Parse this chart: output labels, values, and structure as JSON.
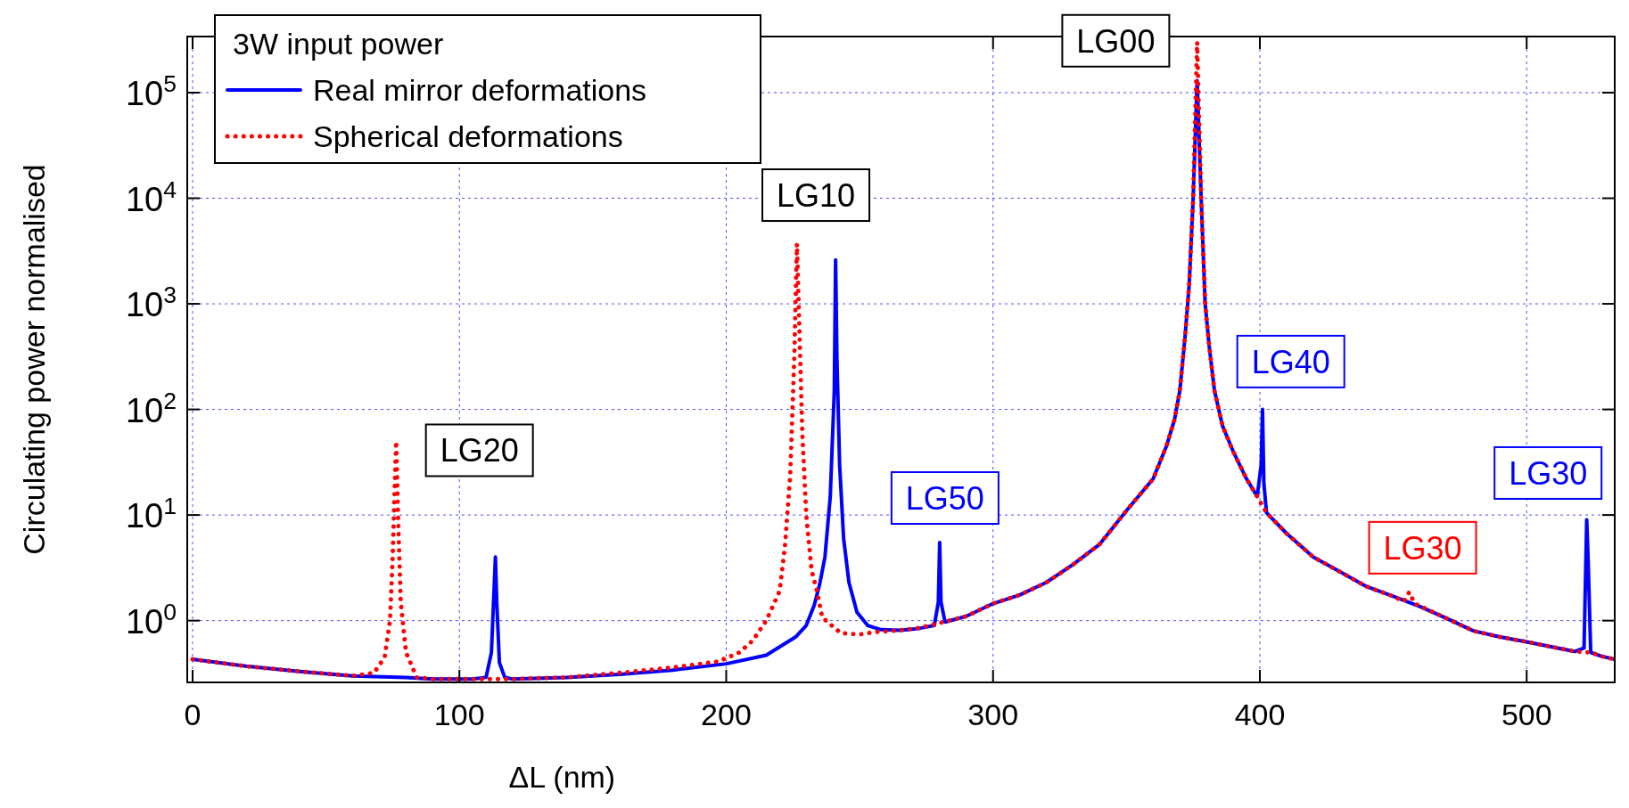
{
  "chart_data": {
    "type": "line",
    "xlabel": "ΔL  (nm)",
    "ylabel": "Circulating power normalised",
    "legend_title": "3W input power",
    "legend": "top left",
    "grid": true,
    "log": "y",
    "xlim": [
      -2,
      533
    ],
    "xticks": [
      0,
      100,
      200,
      300,
      400,
      500
    ],
    "ylim": [
      0.26,
      340000
    ],
    "yticks": [
      {
        "value": 1,
        "label": "10$^{0}$"
      },
      {
        "value": 10,
        "label": "10$^{1}$"
      },
      {
        "value": 100,
        "label": "10$^{2}$"
      },
      {
        "value": 1000,
        "label": "10$^{3}$"
      },
      {
        "value": 10000,
        "label": "10$^{4}$"
      },
      {
        "value": 100000,
        "label": "10$^{5}$"
      }
    ],
    "series": [
      {
        "name": "Real mirror deformations",
        "color": "#0000ff",
        "line_style": "solid",
        "x": [
          0,
          20,
          40,
          60,
          80,
          90,
          105,
          110,
          112,
          113,
          113.5,
          114,
          115,
          117,
          120,
          140,
          160,
          180,
          200,
          215,
          226,
          230,
          233,
          235,
          237,
          239,
          240.5,
          241,
          241.5,
          242.5,
          244,
          246,
          249,
          253,
          258,
          265,
          272,
          278,
          279.5,
          280,
          280.5,
          282,
          290,
          300,
          310,
          320,
          330,
          340,
          350,
          360,
          365,
          368,
          370,
          372,
          373.5,
          375,
          376.5,
          378,
          379.5,
          381,
          383,
          386,
          390,
          395,
          399,
          400.5,
          401,
          401.5,
          402.5,
          410,
          420,
          430,
          440,
          450,
          460,
          470,
          480,
          490,
          500,
          510,
          518,
          521.5,
          522.5,
          523,
          524,
          528,
          533
        ],
        "values": [
          0.43,
          0.37,
          0.33,
          0.3,
          0.29,
          0.28,
          0.28,
          0.29,
          0.5,
          2,
          4,
          1.5,
          0.4,
          0.29,
          0.28,
          0.29,
          0.31,
          0.34,
          0.39,
          0.47,
          0.7,
          0.9,
          1.4,
          2.2,
          4,
          15,
          150,
          2600,
          300,
          30,
          6,
          2.3,
          1.2,
          0.9,
          0.82,
          0.81,
          0.84,
          0.9,
          1.5,
          5.5,
          1.5,
          0.97,
          1.1,
          1.45,
          1.75,
          2.3,
          3.4,
          5.3,
          11,
          22,
          45,
          80,
          150,
          500,
          1500,
          10000,
          130000,
          10000,
          1000,
          400,
          150,
          70,
          40,
          22,
          15,
          30,
          100,
          20,
          10.5,
          6.7,
          4,
          2.9,
          2.1,
          1.7,
          1.36,
          1.05,
          0.8,
          0.7,
          0.63,
          0.56,
          0.51,
          0.55,
          9,
          4,
          0.5,
          0.46,
          0.43
        ]
      },
      {
        "name": "Spherical deformations",
        "color": "#ff0000",
        "line_style": "dotted",
        "x": [
          0,
          20,
          40,
          60,
          68,
          72,
          74,
          75,
          75.8,
          76.3,
          77,
          78,
          80,
          84,
          90,
          110,
          120,
          140,
          160,
          180,
          197,
          205,
          210,
          215,
          220,
          222,
          224,
          225.5,
          226.5,
          227.5,
          228.5,
          230,
          232,
          234,
          236,
          243,
          250,
          256,
          265,
          272,
          280,
          290,
          300,
          310,
          320,
          330,
          340,
          350,
          360,
          365,
          368,
          370,
          372,
          373.5,
          375,
          376.5,
          378,
          379.5,
          381,
          383,
          386,
          390,
          395,
          399,
          402.5,
          410,
          420,
          430,
          440,
          450,
          454,
          456,
          458,
          470,
          480,
          490,
          500,
          510,
          518,
          524,
          528,
          533
        ],
        "values": [
          0.43,
          0.37,
          0.33,
          0.3,
          0.32,
          0.45,
          1,
          4,
          20,
          50,
          10,
          1.5,
          0.5,
          0.29,
          0.28,
          0.28,
          0.28,
          0.29,
          0.32,
          0.36,
          0.41,
          0.5,
          0.65,
          1,
          1.9,
          5,
          24,
          300,
          3700,
          500,
          60,
          10,
          3,
          1.9,
          1.07,
          0.76,
          0.74,
          0.78,
          0.81,
          0.85,
          0.95,
          1.1,
          1.45,
          1.75,
          2.3,
          3.4,
          5.3,
          11,
          22,
          45,
          80,
          150,
          500,
          1500,
          10000,
          300000,
          10000,
          1000,
          400,
          150,
          70,
          40,
          22,
          15,
          10.5,
          6.7,
          4,
          2.9,
          2.1,
          1.7,
          1.52,
          1.86,
          1.45,
          1.05,
          0.8,
          0.7,
          0.63,
          0.56,
          0.51,
          0.5,
          0.46,
          0.43
        ]
      }
    ],
    "annotations": [
      "LG00",
      "LG10",
      "LG20",
      "LG50",
      "LG40",
      "LG30",
      "LG30"
    ]
  }
}
